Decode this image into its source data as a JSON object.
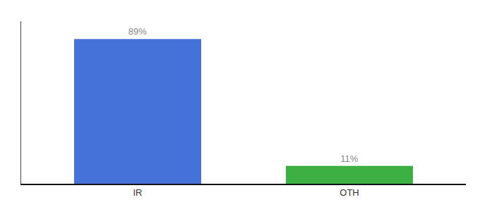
{
  "chart_data": {
    "type": "bar",
    "categories": [
      "IR",
      "OTH"
    ],
    "values": [
      89,
      11
    ],
    "value_labels": [
      "89%",
      "11%"
    ],
    "colors": [
      "#4472d9",
      "#3cb043"
    ],
    "ylim": [
      0,
      100
    ],
    "data_labels": true,
    "tick_labels": "x",
    "grid": false
  }
}
